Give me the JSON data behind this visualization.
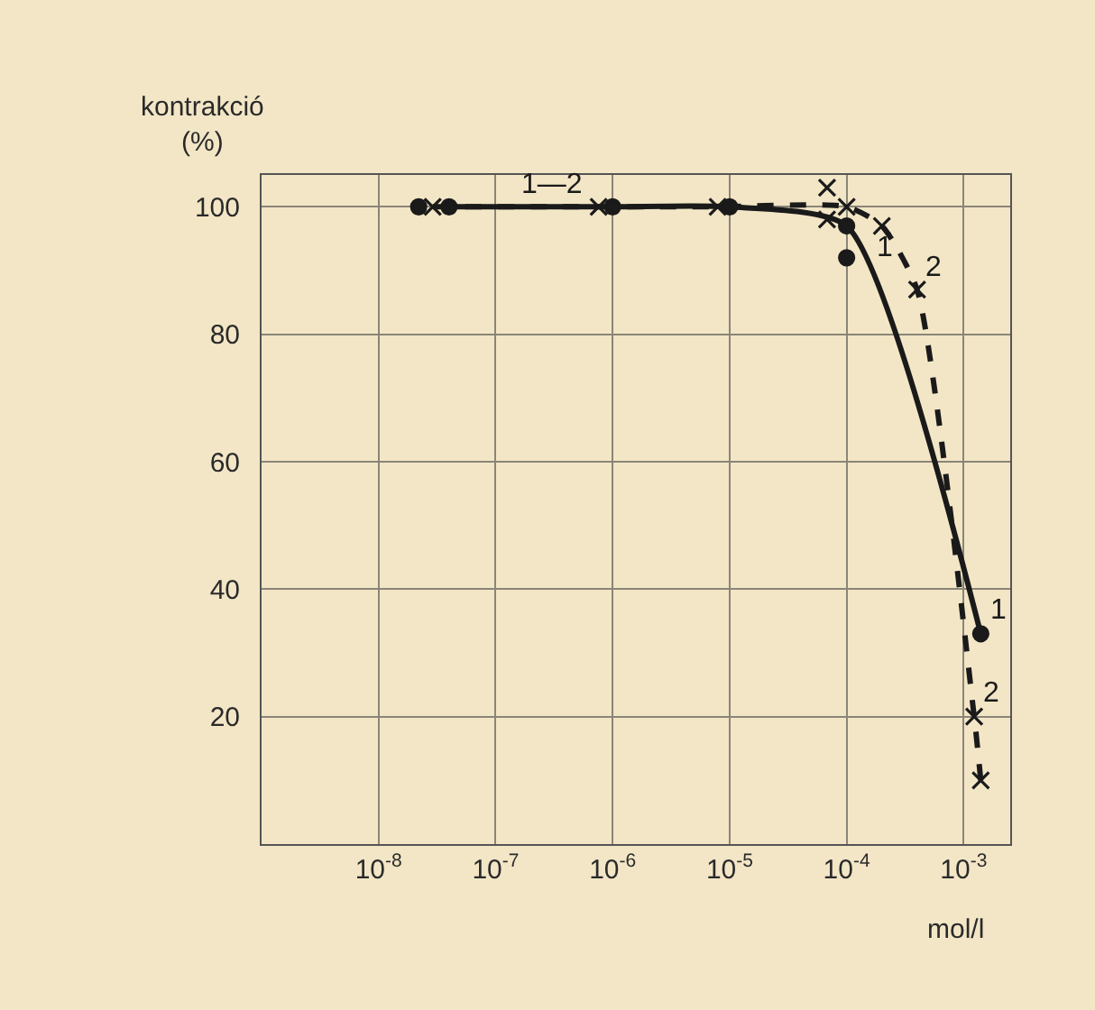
{
  "chart_data": {
    "type": "line",
    "xlabel": "mol/l",
    "ylabel": "kontrakció\n(%)",
    "log": "x",
    "grid": true,
    "xlim": [
      1e-09,
      0.0025
    ],
    "ylim": [
      0,
      105
    ],
    "xticks": [
      {
        "value": 1e-08,
        "label": "10$^{-8}$"
      },
      {
        "value": 1e-07,
        "label": "10$^{-7}$"
      },
      {
        "value": 1e-06,
        "label": "10$^{-6}$"
      },
      {
        "value": 1e-05,
        "label": "10$^{-5}$"
      },
      {
        "value": 0.0001,
        "label": "10$^{-4}$"
      },
      {
        "value": 0.001,
        "label": "10$^{-3}$"
      }
    ],
    "yticks": [
      20,
      40,
      60,
      80,
      100
    ],
    "series": [
      {
        "color": "#1a1a1a",
        "marker": "circle",
        "line_style": "solid",
        "x": [
          4e-08,
          1e-06,
          1e-05,
          0.0001,
          0.0014
        ],
        "values": [
          100,
          100,
          100,
          97,
          33
        ]
      },
      {
        "color": "#1a1a1a",
        "marker": "cross",
        "line_style": "dashed",
        "x": [
          2.9e-08,
          7.6e-07,
          7.9e-06,
          0.0001,
          0.0002,
          0.0004,
          0.00123,
          0.0014
        ],
        "values": [
          100,
          100,
          100,
          100,
          97,
          87,
          20,
          10
        ]
      },
      {
        "type": "scatter",
        "color": "#1a1a1a",
        "marker": "circle",
        "x": [
          2.2e-08,
          0.0001
        ],
        "values": [
          100,
          92
        ]
      },
      {
        "type": "scatter",
        "color": "#1a1a1a",
        "marker": "cross",
        "x": [
          6.8e-05,
          6.8e-05
        ],
        "values": [
          103,
          98
        ]
      }
    ],
    "annotations": [
      {
        "text": "1—2",
        "x": 1.4e-07,
        "y": 100
      },
      {
        "text": "1",
        "x": 0.00015,
        "y": 90
      },
      {
        "text": "2",
        "x": 0.0004,
        "y": 87
      },
      {
        "text": "1",
        "x": 0.0014,
        "y": 33
      },
      {
        "text": "2",
        "x": 0.00123,
        "y": 20
      }
    ]
  }
}
